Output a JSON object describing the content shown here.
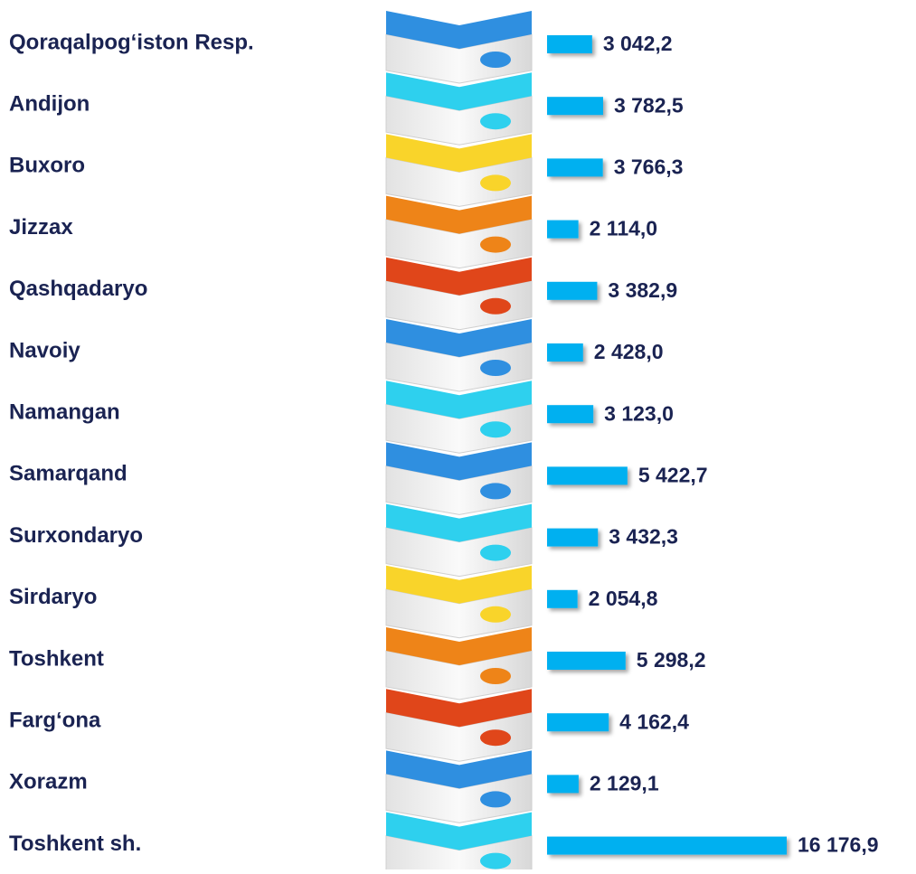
{
  "chart_data": {
    "type": "bar",
    "orientation": "horizontal",
    "categories": [
      "Qoraqalpog‘iston Resp.",
      "Andijon",
      "Buxoro",
      "Jizzax",
      "Qashqadaryo",
      "Navoiy",
      "Namangan",
      "Samarqand",
      "Surxondaryo",
      "Sirdaryo",
      "Toshkent",
      "Farg‘ona",
      "Xorazm",
      "Toshkent sh."
    ],
    "values": [
      3042.2,
      3782.5,
      3766.3,
      2114.0,
      3382.9,
      2428.0,
      3123.0,
      5422.7,
      3432.3,
      2054.8,
      5298.2,
      4162.4,
      2129.1,
      16176.9
    ],
    "value_labels": [
      "3 042,2",
      "3 782,5",
      "3 766,3",
      "2 114,0",
      "3 382,9",
      "2 428,0",
      "3 123,0",
      "5 422,7",
      "3 432,3",
      "2 054,8",
      "5 298,2",
      "4 162,4",
      "2 129,1",
      "16 176,9"
    ],
    "color": "#00b0f0"
  }
}
